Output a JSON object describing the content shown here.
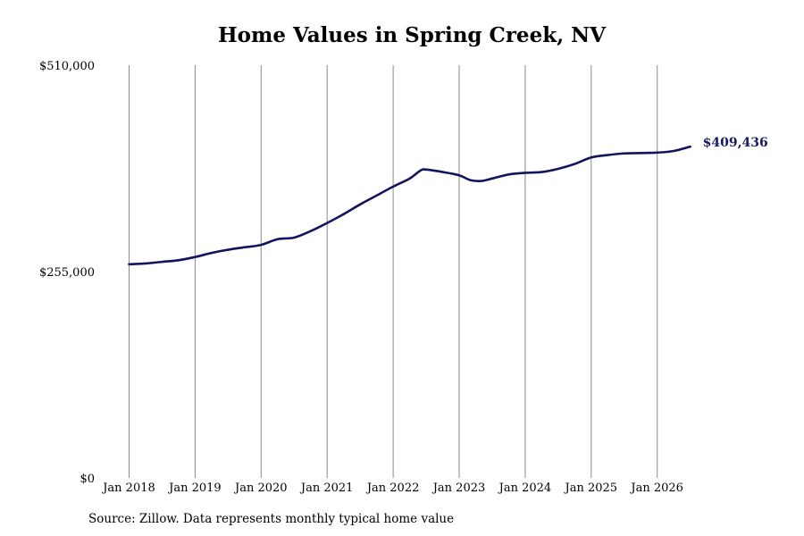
{
  "chart_data": {
    "type": "line",
    "title": "Home Values in Spring Creek, NV",
    "xlabel": "",
    "ylabel": "",
    "ylim": [
      0,
      510000
    ],
    "y_ticks": [
      "$0",
      "$255,000",
      "$510,000"
    ],
    "y_tick_values": [
      0,
      255000,
      510000
    ],
    "x_ticks": [
      "Jan 2018",
      "Jan 2019",
      "Jan 2020",
      "Jan 2021",
      "Jan 2022",
      "Jan 2023",
      "Jan 2024",
      "Jan 2025",
      "Jan 2026"
    ],
    "x_tick_dates": [
      "2018-01",
      "2019-01",
      "2020-01",
      "2021-01",
      "2022-01",
      "2023-01",
      "2024-01",
      "2025-01",
      "2026-01"
    ],
    "grid": "vertical",
    "line_color": "#14145e",
    "end_label": "$409,436",
    "series": [
      {
        "points": [
          [
            "2018-01",
            264000
          ],
          [
            "2018-04",
            265000
          ],
          [
            "2018-07",
            267000
          ],
          [
            "2018-10",
            269000
          ],
          [
            "2019-01",
            273000
          ],
          [
            "2019-04",
            278000
          ],
          [
            "2019-07",
            282000
          ],
          [
            "2019-10",
            285000
          ],
          [
            "2020-01",
            288000
          ],
          [
            "2020-04",
            295000
          ],
          [
            "2020-07",
            297000
          ],
          [
            "2020-10",
            305000
          ],
          [
            "2021-01",
            315000
          ],
          [
            "2021-04",
            326000
          ],
          [
            "2021-07",
            338000
          ],
          [
            "2021-10",
            349000
          ],
          [
            "2022-01",
            360000
          ],
          [
            "2022-04",
            370000
          ],
          [
            "2022-06",
            380000
          ],
          [
            "2022-07",
            381000
          ],
          [
            "2022-10",
            378000
          ],
          [
            "2023-01",
            374000
          ],
          [
            "2023-03",
            368000
          ],
          [
            "2023-05",
            367000
          ],
          [
            "2023-07",
            370000
          ],
          [
            "2023-10",
            375000
          ],
          [
            "2024-01",
            377000
          ],
          [
            "2024-04",
            378000
          ],
          [
            "2024-07",
            382000
          ],
          [
            "2024-10",
            388000
          ],
          [
            "2025-01",
            396000
          ],
          [
            "2025-04",
            399000
          ],
          [
            "2025-07",
            401000
          ],
          [
            "2025-10",
            401500
          ],
          [
            "2026-01",
            402000
          ],
          [
            "2026-04",
            404000
          ],
          [
            "2026-07",
            409436
          ]
        ]
      }
    ]
  },
  "source": "Source: Zillow. Data represents monthly typical home value"
}
